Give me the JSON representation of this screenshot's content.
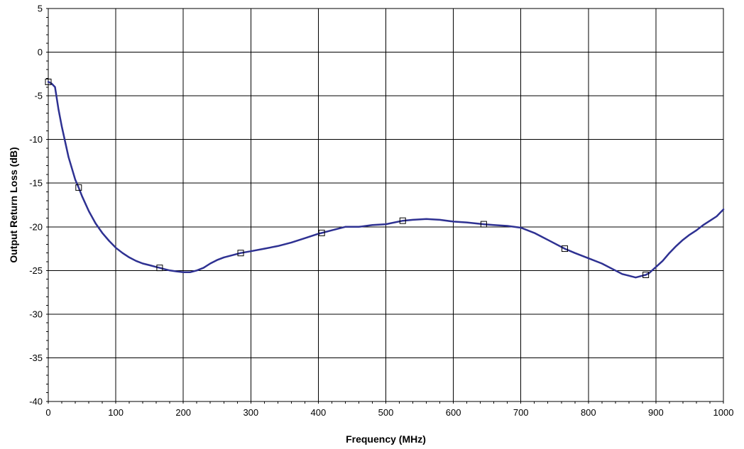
{
  "chart_data": {
    "type": "line",
    "title": "",
    "xlabel": "Frequency (MHz)",
    "ylabel": "Output Return Loss (dB)",
    "xlim": [
      0,
      1000
    ],
    "ylim": [
      -40,
      5
    ],
    "x_ticks": [
      0,
      100,
      200,
      300,
      400,
      500,
      600,
      700,
      800,
      900,
      1000
    ],
    "x_tick_labels": [
      "0",
      "100",
      "200",
      "300",
      "400",
      "500",
      "600",
      "700",
      "800",
      "900",
      "1000"
    ],
    "y_ticks": [
      5,
      0,
      -5,
      -10,
      -15,
      -20,
      -25,
      -30,
      -35,
      -40
    ],
    "y_tick_labels": [
      "5",
      "0",
      "-5",
      "-10",
      "-15",
      "-20",
      "-25",
      "-30",
      "-35",
      "-40"
    ],
    "grid": true,
    "legend": "none",
    "series_color": "#2e3192",
    "series": [
      {
        "x": [
          0,
          5,
          10,
          15,
          20,
          30,
          40,
          45,
          50,
          60,
          70,
          80,
          90,
          100,
          110,
          120,
          130,
          140,
          150,
          160,
          165,
          170,
          180,
          190,
          200,
          210,
          220,
          230,
          240,
          250,
          260,
          270,
          285,
          300,
          320,
          340,
          360,
          380,
          400,
          405,
          420,
          440,
          460,
          480,
          500,
          525,
          540,
          560,
          580,
          600,
          620,
          645,
          660,
          680,
          700,
          720,
          740,
          765,
          780,
          800,
          820,
          840,
          850,
          860,
          870,
          880,
          885,
          890,
          900,
          910,
          920,
          930,
          940,
          950,
          960,
          970,
          980,
          990,
          1000
        ],
        "y": [
          -3.4,
          -3.6,
          -4.0,
          -6.5,
          -8.5,
          -12.0,
          -14.6,
          -15.5,
          -16.5,
          -18.2,
          -19.6,
          -20.7,
          -21.6,
          -22.4,
          -23.0,
          -23.5,
          -23.9,
          -24.2,
          -24.4,
          -24.6,
          -24.7,
          -24.8,
          -25.0,
          -25.1,
          -25.2,
          -25.2,
          -25.0,
          -24.7,
          -24.2,
          -23.8,
          -23.5,
          -23.3,
          -23.0,
          -22.8,
          -22.5,
          -22.2,
          -21.8,
          -21.3,
          -20.8,
          -20.7,
          -20.4,
          -20.0,
          -20.0,
          -19.8,
          -19.7,
          -19.3,
          -19.2,
          -19.1,
          -19.2,
          -19.4,
          -19.5,
          -19.7,
          -19.8,
          -19.9,
          -20.1,
          -20.7,
          -21.5,
          -22.5,
          -23.0,
          -23.6,
          -24.2,
          -25.0,
          -25.4,
          -25.6,
          -25.8,
          -25.6,
          -25.5,
          -25.3,
          -24.6,
          -23.9,
          -23.0,
          -22.2,
          -21.5,
          -20.9,
          -20.4,
          -19.8,
          -19.3,
          -18.8,
          -18.0
        ]
      }
    ],
    "markers": {
      "shape": "square",
      "x": [
        0,
        45,
        165,
        285,
        405,
        525,
        645,
        765,
        885
      ],
      "y": [
        -3.4,
        -15.5,
        -24.7,
        -23.0,
        -20.7,
        -19.3,
        -19.7,
        -22.5,
        -25.5
      ]
    }
  }
}
